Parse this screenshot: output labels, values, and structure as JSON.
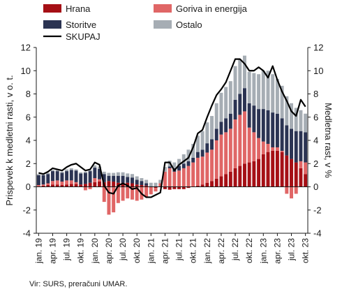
{
  "chart_data": {
    "type": "bar",
    "stacked": true,
    "ylabel_left": "Prispevek k medletni rasti, v o. t.",
    "ylabel_right": "Medletna rast, v %",
    "ylim": [
      -4,
      12
    ],
    "yticks": [
      -4,
      -2,
      0,
      2,
      4,
      6,
      8,
      10,
      12
    ],
    "grid": false,
    "legend_position": "top",
    "xtick_labels": [
      "jan. 19",
      "apr. 19",
      "jul. 19",
      "okt. 19",
      "jan. 20",
      "apr. 20",
      "jul. 20",
      "okt. 20",
      "jan. 21",
      "apr. 21",
      "jul. 21",
      "okt. 21",
      "jan. 22",
      "apr. 22",
      "jul. 22",
      "okt. 22",
      "jan. 23",
      "apr. 23",
      "jul. 23",
      "okt. 23"
    ],
    "months": [
      "2019-01",
      "2019-02",
      "2019-03",
      "2019-04",
      "2019-05",
      "2019-06",
      "2019-07",
      "2019-08",
      "2019-09",
      "2019-10",
      "2019-11",
      "2019-12",
      "2020-01",
      "2020-02",
      "2020-03",
      "2020-04",
      "2020-05",
      "2020-06",
      "2020-07",
      "2020-08",
      "2020-09",
      "2020-10",
      "2020-11",
      "2020-12",
      "2021-01",
      "2021-02",
      "2021-03",
      "2021-04",
      "2021-05",
      "2021-06",
      "2021-07",
      "2021-08",
      "2021-09",
      "2021-10",
      "2021-11",
      "2021-12",
      "2022-01",
      "2022-02",
      "2022-03",
      "2022-04",
      "2022-05",
      "2022-06",
      "2022-07",
      "2022-08",
      "2022-09",
      "2022-10",
      "2022-11",
      "2022-12",
      "2023-01",
      "2023-02",
      "2023-03",
      "2023-04",
      "2023-05",
      "2023-06",
      "2023-07",
      "2023-08",
      "2023-09",
      "2023-10"
    ],
    "series": [
      {
        "name": "Hrana",
        "kind": "bar",
        "color": "#a50f15",
        "values": [
          0.05,
          0.1,
          0.15,
          0.2,
          0.2,
          0.15,
          0.2,
          0.25,
          0.25,
          0.2,
          0.25,
          0.35,
          0.4,
          0.45,
          0.4,
          0.5,
          0.45,
          0.35,
          0.35,
          0.35,
          0.3,
          0.2,
          0.15,
          0.1,
          -0.05,
          -0.1,
          0.0,
          -0.2,
          -0.25,
          -0.2,
          -0.2,
          -0.2,
          -0.1,
          0.0,
          0.1,
          0.2,
          0.35,
          0.5,
          0.7,
          0.9,
          1.1,
          1.3,
          1.6,
          1.8,
          2.0,
          2.1,
          2.2,
          2.4,
          2.8,
          3.0,
          3.1,
          3.1,
          3.0,
          2.7,
          2.4,
          2.1,
          1.6,
          1.1
        ]
      },
      {
        "name": "Goriva in energija",
        "kind": "bar",
        "color": "#e06666",
        "values": [
          0.1,
          0.1,
          0.15,
          0.3,
          0.35,
          0.3,
          0.35,
          0.3,
          0.15,
          0.0,
          -0.3,
          -0.2,
          0.35,
          0.2,
          -1.3,
          -2.4,
          -2.2,
          -1.4,
          -1.2,
          -1.0,
          -1.1,
          -1.2,
          -1.1,
          -0.9,
          -0.6,
          -0.3,
          0.3,
          1.3,
          1.6,
          1.3,
          1.4,
          1.6,
          1.8,
          2.1,
          2.4,
          2.4,
          2.6,
          2.7,
          3.3,
          3.6,
          3.6,
          3.7,
          4.2,
          4.4,
          4.5,
          3.0,
          2.5,
          1.8,
          1.1,
          0.7,
          0.3,
          0.3,
          0.1,
          -0.6,
          -1.0,
          -0.6,
          0.6,
          1.0
        ]
      },
      {
        "name": "Storitve",
        "kind": "bar",
        "color": "#2b3352",
        "values": [
          0.85,
          0.8,
          0.8,
          0.85,
          0.8,
          0.75,
          0.8,
          0.9,
          1.0,
          0.95,
          0.95,
          1.0,
          0.9,
          0.9,
          0.7,
          0.45,
          0.5,
          0.6,
          0.6,
          0.5,
          0.5,
          0.4,
          0.35,
          0.2,
          0.05,
          0.05,
          0.0,
          0.0,
          0.15,
          0.3,
          0.4,
          0.4,
          0.4,
          0.4,
          0.5,
          0.6,
          0.8,
          0.9,
          1.0,
          1.1,
          1.2,
          1.3,
          1.7,
          1.8,
          2.0,
          2.1,
          2.3,
          2.5,
          2.8,
          2.9,
          3.0,
          2.9,
          2.8,
          2.6,
          2.6,
          2.7,
          2.6,
          2.6
        ]
      },
      {
        "name": "Ostalo",
        "kind": "bar",
        "color": "#a6adb4",
        "values": [
          0.1,
          0.1,
          0.1,
          0.1,
          0.15,
          0.1,
          0.15,
          0.15,
          0.1,
          0.1,
          0.1,
          0.1,
          0.2,
          0.2,
          0.2,
          0.25,
          0.25,
          0.3,
          0.3,
          0.3,
          0.3,
          0.3,
          0.25,
          0.3,
          0.3,
          0.3,
          0.3,
          0.4,
          0.5,
          0.5,
          0.6,
          0.8,
          1.0,
          1.2,
          1.4,
          1.6,
          1.8,
          2.0,
          2.2,
          2.5,
          2.7,
          2.8,
          2.9,
          3.0,
          2.8,
          2.7,
          2.8,
          3.0,
          3.3,
          3.4,
          3.3,
          3.0,
          2.8,
          2.5,
          2.2,
          2.0,
          1.8,
          1.6
        ]
      },
      {
        "name": "SKUPAJ",
        "kind": "line",
        "color": "#000000",
        "values": [
          1.2,
          1.1,
          1.3,
          1.6,
          1.5,
          1.4,
          1.7,
          1.9,
          2.0,
          1.7,
          1.4,
          1.5,
          2.1,
          1.9,
          0.1,
          -0.5,
          -0.6,
          0.1,
          0.3,
          0.1,
          -0.2,
          -0.1,
          -0.6,
          -0.9,
          -0.9,
          -0.7,
          -0.5,
          2.1,
          2.1,
          1.4,
          1.9,
          2.2,
          2.5,
          3.4,
          4.6,
          4.9,
          6.0,
          7.0,
          7.9,
          8.4,
          9.0,
          10.0,
          11.0,
          11.0,
          10.6,
          10.0,
          10.0,
          10.3,
          10.0,
          9.4,
          10.4,
          9.2,
          8.2,
          7.4,
          6.5,
          6.1,
          7.5,
          6.9
        ]
      }
    ]
  },
  "legend": {
    "items": [
      {
        "label": "Hrana",
        "type": "swatch",
        "color": "#a50f15"
      },
      {
        "label": "Goriva in energija",
        "type": "swatch",
        "color": "#e06666"
      },
      {
        "label": "Storitve",
        "type": "swatch",
        "color": "#2b3352"
      },
      {
        "label": "Ostalo",
        "type": "swatch",
        "color": "#a6adb4"
      },
      {
        "label": "SKUPAJ",
        "type": "line",
        "color": "#000000"
      }
    ]
  },
  "source": "Vir: SURS, preračuni UMAR."
}
